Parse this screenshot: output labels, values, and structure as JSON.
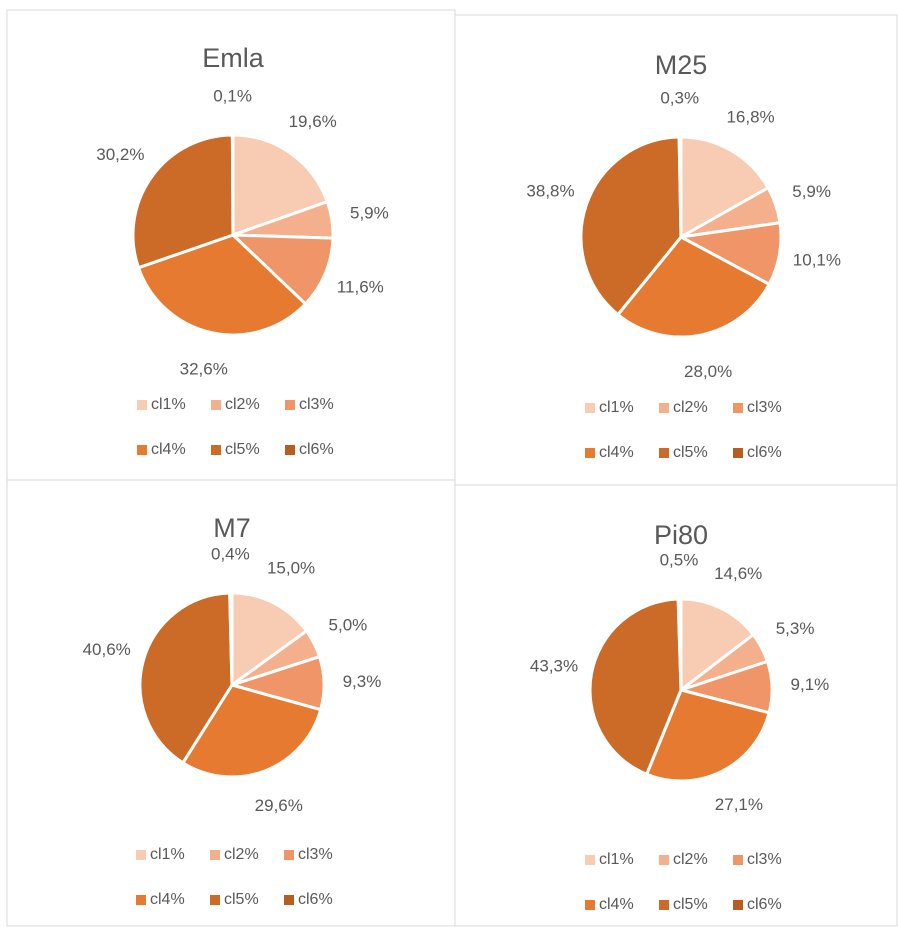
{
  "chart_data": [
    {
      "type": "pie",
      "title": "Emla",
      "categories": [
        "cl1%",
        "cl2%",
        "cl3%",
        "cl4%",
        "cl5%",
        "cl6%"
      ],
      "values": [
        19.6,
        5.9,
        11.6,
        32.6,
        30.2,
        0.1
      ],
      "value_labels": [
        "19,6%",
        "5,9%",
        "11,6%",
        "32,6%",
        "30,2%",
        "0,1%"
      ],
      "colors": [
        "#f8cbb3",
        "#f4b08d",
        "#ef9568",
        "#e67a30",
        "#cc6a28",
        "#b65d22"
      ],
      "legend": "bottom"
    },
    {
      "type": "pie",
      "title": "M25",
      "categories": [
        "cl1%",
        "cl2%",
        "cl3%",
        "cl4%",
        "cl5%",
        "cl6%"
      ],
      "values": [
        16.8,
        5.9,
        10.1,
        28.0,
        38.8,
        0.3
      ],
      "value_labels": [
        "16,8%",
        "5,9%",
        "10,1%",
        "28,0%",
        "38,8%",
        "0,3%"
      ],
      "colors": [
        "#f8cbb3",
        "#f4b08d",
        "#ef9568",
        "#e67a30",
        "#cc6a28",
        "#b65d22"
      ],
      "legend": "bottom"
    },
    {
      "type": "pie",
      "title": "M7",
      "categories": [
        "cl1%",
        "cl2%",
        "cl3%",
        "cl4%",
        "cl5%",
        "cl6%"
      ],
      "values": [
        15.0,
        5.0,
        9.3,
        29.6,
        40.6,
        0.4
      ],
      "value_labels": [
        "15,0%",
        "5,0%",
        "9,3%",
        "29,6%",
        "40,6%",
        "0,4%"
      ],
      "colors": [
        "#f8cbb3",
        "#f4b08d",
        "#ef9568",
        "#e67a30",
        "#cc6a28",
        "#b65d22"
      ],
      "legend": "bottom"
    },
    {
      "type": "pie",
      "title": "Pi80",
      "categories": [
        "cl1%",
        "cl2%",
        "cl3%",
        "cl4%",
        "cl5%",
        "cl6%"
      ],
      "values": [
        14.6,
        5.3,
        9.1,
        27.1,
        43.3,
        0.5
      ],
      "value_labels": [
        "14,6%",
        "5,3%",
        "9,1%",
        "27,1%",
        "43,3%",
        "0,5%"
      ],
      "colors": [
        "#f8cbb3",
        "#f4b08d",
        "#ef9568",
        "#e67a30",
        "#cc6a28",
        "#b65d22"
      ],
      "legend": "bottom"
    }
  ]
}
